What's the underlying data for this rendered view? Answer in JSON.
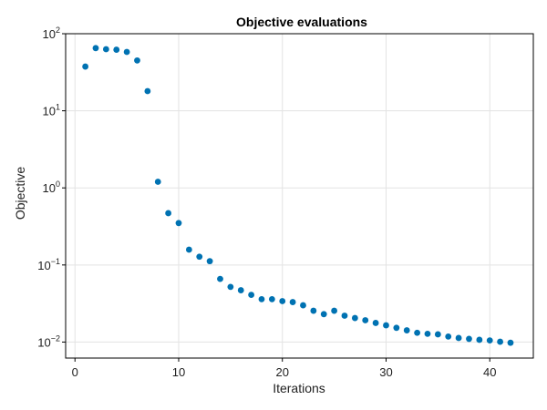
{
  "chart_data": {
    "type": "scatter",
    "title": "Objective evaluations",
    "xlabel": "Iterations",
    "ylabel": "Objective",
    "yscale": "log",
    "xlim": [
      -0.9,
      44.2
    ],
    "ylim": [
      0.0062,
      100
    ],
    "xticks": [
      0,
      10,
      20,
      30,
      40
    ],
    "yticks": [
      {
        "value": 0.01,
        "base": "10",
        "exp": "−2"
      },
      {
        "value": 0.1,
        "base": "10",
        "exp": "−1"
      },
      {
        "value": 1,
        "base": "10",
        "exp": "0"
      },
      {
        "value": 10,
        "base": "10",
        "exp": "1"
      },
      {
        "value": 100,
        "base": "10",
        "exp": "2"
      }
    ],
    "grid": true,
    "marker_color": "#0072b2",
    "series": [
      {
        "x": [
          1,
          2,
          3,
          4,
          5,
          6,
          7,
          8,
          9,
          10,
          11,
          12,
          13,
          14,
          15,
          16,
          17,
          18,
          19,
          20,
          21,
          22,
          23,
          24,
          25,
          26,
          27,
          28,
          29,
          30,
          31,
          32,
          33,
          34,
          35,
          36,
          37,
          38,
          39,
          40,
          41,
          42
        ],
        "y": [
          37.5,
          65,
          63,
          62,
          58,
          45,
          18,
          1.2,
          0.47,
          0.35,
          0.158,
          0.128,
          0.112,
          0.066,
          0.052,
          0.047,
          0.041,
          0.036,
          0.036,
          0.034,
          0.033,
          0.03,
          0.0255,
          0.023,
          0.0255,
          0.022,
          0.0205,
          0.0192,
          0.0177,
          0.0165,
          0.0153,
          0.0142,
          0.0132,
          0.0128,
          0.0126,
          0.0118,
          0.0113,
          0.011,
          0.0107,
          0.0105,
          0.0101,
          0.0098
        ]
      }
    ]
  }
}
